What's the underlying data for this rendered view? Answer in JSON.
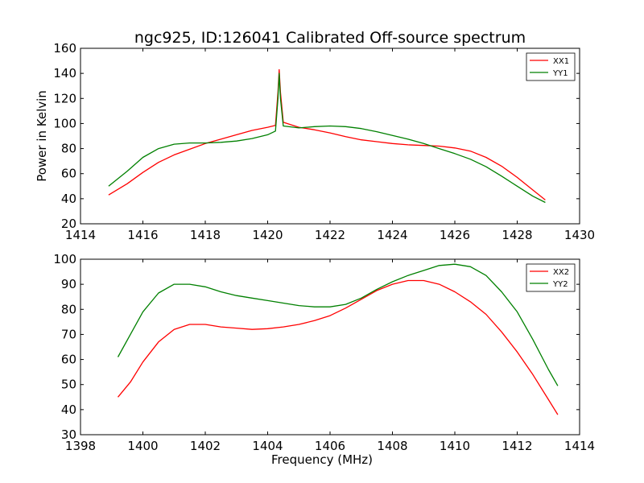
{
  "title": "ngc925, ID:126041 Calibrated Off-source spectrum",
  "chart_data": [
    {
      "type": "line",
      "panel": "top",
      "ylabel": "Power in Kelvin",
      "xlabel": "",
      "xlim": [
        1414,
        1430
      ],
      "ylim": [
        20,
        160
      ],
      "xticks": [
        1414,
        1416,
        1418,
        1420,
        1422,
        1424,
        1426,
        1428,
        1430
      ],
      "yticks": [
        20,
        40,
        60,
        80,
        100,
        120,
        140,
        160
      ],
      "legend_position": "top-right",
      "series": [
        {
          "name": "XX1",
          "color": "#ff0000",
          "points": [
            [
              1414.9,
              43
            ],
            [
              1415.5,
              52
            ],
            [
              1416.0,
              61
            ],
            [
              1416.5,
              69
            ],
            [
              1417.0,
              75
            ],
            [
              1417.5,
              79.5
            ],
            [
              1418.0,
              84
            ],
            [
              1418.5,
              87.5
            ],
            [
              1419.0,
              91
            ],
            [
              1419.5,
              94.5
            ],
            [
              1420.0,
              97
            ],
            [
              1420.25,
              98.5
            ],
            [
              1420.33,
              125
            ],
            [
              1420.37,
              143
            ],
            [
              1420.41,
              125
            ],
            [
              1420.5,
              101
            ],
            [
              1421.0,
              97
            ],
            [
              1421.5,
              95
            ],
            [
              1422.0,
              92.5
            ],
            [
              1422.5,
              89.5
            ],
            [
              1423.0,
              87
            ],
            [
              1423.5,
              85.5
            ],
            [
              1424.0,
              84
            ],
            [
              1424.5,
              83
            ],
            [
              1425.0,
              82.5
            ],
            [
              1425.5,
              82
            ],
            [
              1426.0,
              80.5
            ],
            [
              1426.5,
              78
            ],
            [
              1427.0,
              73
            ],
            [
              1427.5,
              66
            ],
            [
              1428.0,
              57
            ],
            [
              1428.5,
              47
            ],
            [
              1428.9,
              39
            ]
          ]
        },
        {
          "name": "YY1",
          "color": "#008000",
          "points": [
            [
              1414.9,
              50
            ],
            [
              1415.5,
              62
            ],
            [
              1416.0,
              73
            ],
            [
              1416.5,
              80
            ],
            [
              1417.0,
              83.5
            ],
            [
              1417.5,
              84.5
            ],
            [
              1418.0,
              84.5
            ],
            [
              1418.5,
              85
            ],
            [
              1419.0,
              86
            ],
            [
              1419.5,
              88
            ],
            [
              1420.0,
              91
            ],
            [
              1420.25,
              94
            ],
            [
              1420.33,
              120
            ],
            [
              1420.37,
              140
            ],
            [
              1420.41,
              120
            ],
            [
              1420.5,
              98
            ],
            [
              1421.0,
              96.5
            ],
            [
              1421.5,
              97.5
            ],
            [
              1422.0,
              98
            ],
            [
              1422.5,
              97.5
            ],
            [
              1423.0,
              96
            ],
            [
              1423.5,
              93.5
            ],
            [
              1424.0,
              90.5
            ],
            [
              1424.5,
              87.5
            ],
            [
              1425.0,
              84
            ],
            [
              1425.5,
              80
            ],
            [
              1426.0,
              76
            ],
            [
              1426.5,
              71.5
            ],
            [
              1427.0,
              65.5
            ],
            [
              1427.5,
              58
            ],
            [
              1428.0,
              50
            ],
            [
              1428.5,
              42
            ],
            [
              1428.9,
              37
            ]
          ]
        }
      ]
    },
    {
      "type": "line",
      "panel": "bottom",
      "ylabel": "",
      "xlabel": "Frequency (MHz)",
      "xlim": [
        1398,
        1414
      ],
      "ylim": [
        30,
        100
      ],
      "xticks": [
        1398,
        1400,
        1402,
        1404,
        1406,
        1408,
        1410,
        1412,
        1414
      ],
      "yticks": [
        30,
        40,
        50,
        60,
        70,
        80,
        90,
        100
      ],
      "legend_position": "top-right",
      "series": [
        {
          "name": "XX2",
          "color": "#ff0000",
          "points": [
            [
              1399.2,
              45
            ],
            [
              1399.6,
              51
            ],
            [
              1400.0,
              59
            ],
            [
              1400.5,
              67
            ],
            [
              1401.0,
              72
            ],
            [
              1401.5,
              74
            ],
            [
              1402.0,
              74
            ],
            [
              1402.5,
              73
            ],
            [
              1403.0,
              72.5
            ],
            [
              1403.5,
              72
            ],
            [
              1404.0,
              72.3
            ],
            [
              1404.5,
              73
            ],
            [
              1405.0,
              74
            ],
            [
              1405.5,
              75.5
            ],
            [
              1406.0,
              77.5
            ],
            [
              1406.5,
              80.5
            ],
            [
              1407.0,
              84
            ],
            [
              1407.5,
              87.5
            ],
            [
              1408.0,
              90
            ],
            [
              1408.5,
              91.5
            ],
            [
              1409.0,
              91.5
            ],
            [
              1409.5,
              90
            ],
            [
              1410.0,
              87
            ],
            [
              1410.5,
              83
            ],
            [
              1411.0,
              78
            ],
            [
              1411.5,
              71
            ],
            [
              1412.0,
              63
            ],
            [
              1412.5,
              54
            ],
            [
              1413.0,
              44
            ],
            [
              1413.3,
              38
            ]
          ]
        },
        {
          "name": "YY2",
          "color": "#008000",
          "points": [
            [
              1399.2,
              61
            ],
            [
              1399.6,
              70
            ],
            [
              1400.0,
              79
            ],
            [
              1400.5,
              86.5
            ],
            [
              1401.0,
              90
            ],
            [
              1401.5,
              90
            ],
            [
              1402.0,
              89
            ],
            [
              1402.5,
              87
            ],
            [
              1403.0,
              85.5
            ],
            [
              1403.5,
              84.5
            ],
            [
              1404.0,
              83.5
            ],
            [
              1404.5,
              82.5
            ],
            [
              1405.0,
              81.5
            ],
            [
              1405.5,
              81
            ],
            [
              1406.0,
              81
            ],
            [
              1406.5,
              82
            ],
            [
              1407.0,
              84.5
            ],
            [
              1407.5,
              88
            ],
            [
              1408.0,
              91
            ],
            [
              1408.5,
              93.5
            ],
            [
              1409.0,
              95.5
            ],
            [
              1409.5,
              97.5
            ],
            [
              1410.0,
              98
            ],
            [
              1410.5,
              97
            ],
            [
              1411.0,
              93.5
            ],
            [
              1411.5,
              87
            ],
            [
              1412.0,
              79
            ],
            [
              1412.5,
              68
            ],
            [
              1413.0,
              56
            ],
            [
              1413.3,
              49.5
            ]
          ]
        }
      ]
    }
  ]
}
